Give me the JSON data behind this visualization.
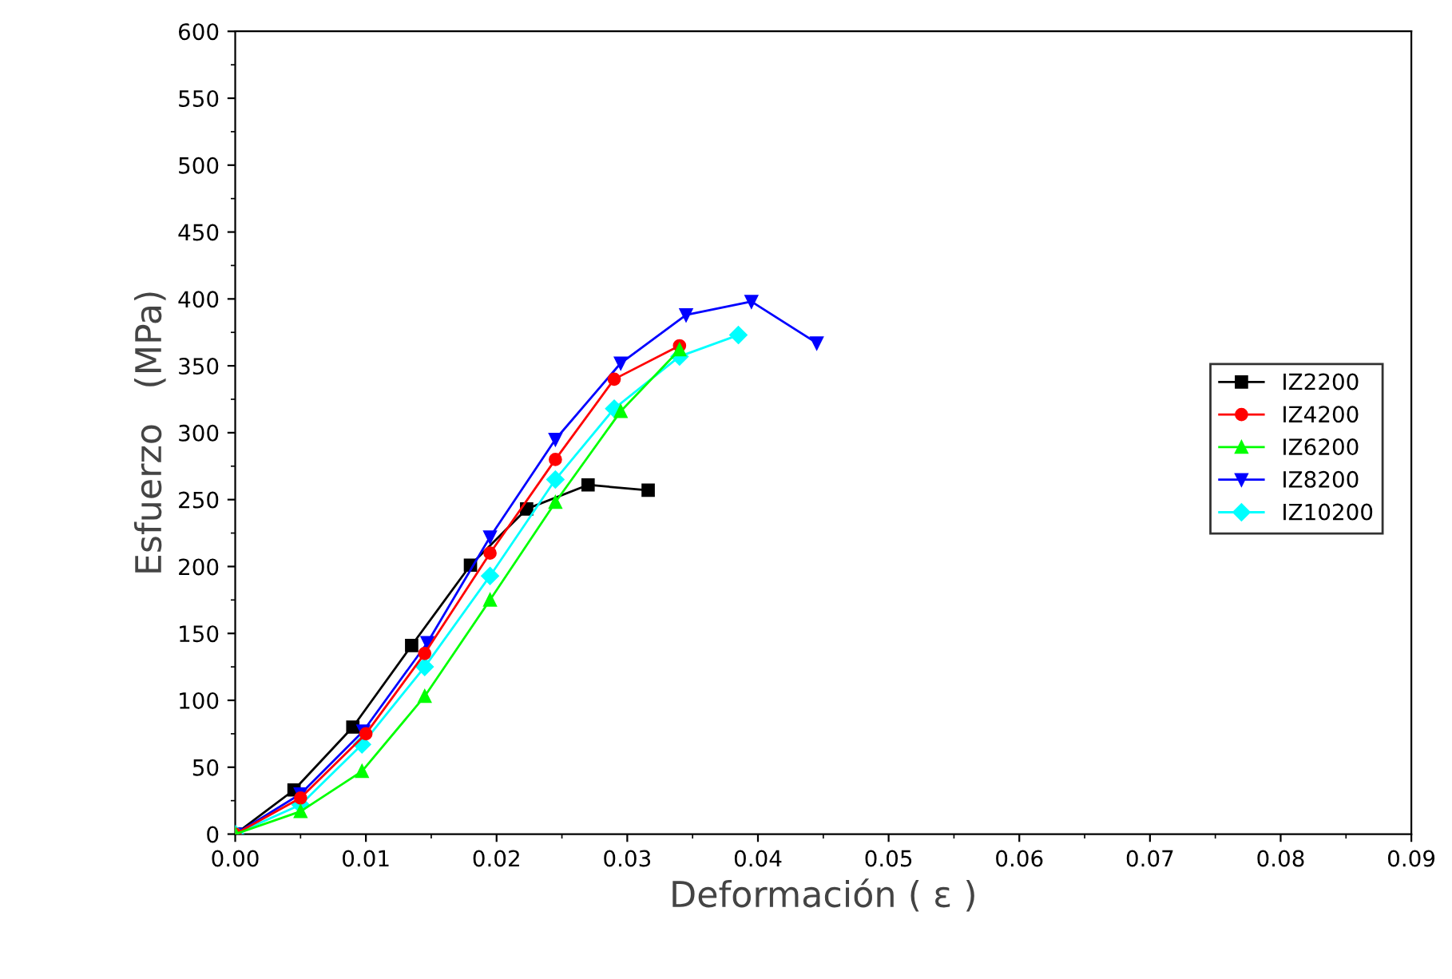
{
  "chart_data": {
    "type": "line",
    "xlabel": "Deformación ( ε )",
    "ylabel": "Esfuerzo   (MPa)",
    "legend": "right",
    "grid": false,
    "xlim": [
      0,
      0.09
    ],
    "ylim": [
      0,
      600
    ],
    "xticks": [
      {
        "value": 0,
        "label": "0.00"
      },
      {
        "value": 0.01,
        "label": "0.01"
      },
      {
        "value": 0.02,
        "label": "0.02"
      },
      {
        "value": 0.03,
        "label": "0.03"
      },
      {
        "value": 0.04,
        "label": "0.04"
      },
      {
        "value": 0.05,
        "label": "0.05"
      },
      {
        "value": 0.06,
        "label": "0.06"
      },
      {
        "value": 0.07,
        "label": "0.07"
      },
      {
        "value": 0.08,
        "label": "0.08"
      },
      {
        "value": 0.09,
        "label": "0.09"
      }
    ],
    "yticks": [
      0,
      50,
      100,
      150,
      200,
      250,
      300,
      350,
      400,
      450,
      500,
      550,
      600
    ],
    "series": [
      {
        "name": "IZ2200",
        "color": "#000000",
        "marker": "square",
        "x": [
          0,
          0.0045,
          0.009,
          0.0135,
          0.018,
          0.0223,
          0.027,
          0.0316
        ],
        "values": [
          0,
          33,
          80,
          141,
          201,
          243,
          261,
          257
        ]
      },
      {
        "name": "IZ4200",
        "color": "#ff0000",
        "marker": "circle",
        "x": [
          0,
          0.005,
          0.01,
          0.0145,
          0.0195,
          0.0245,
          0.029,
          0.034
        ],
        "values": [
          0,
          27,
          75,
          135,
          210,
          280,
          340,
          365
        ]
      },
      {
        "name": "IZ6200",
        "color": "#00ff00",
        "marker": "triangle",
        "x": [
          0,
          0.005,
          0.0097,
          0.0145,
          0.0195,
          0.0245,
          0.0295,
          0.034
        ],
        "values": [
          0,
          17,
          47,
          103,
          175,
          248,
          316,
          362
        ]
      },
      {
        "name": "IZ8200",
        "color": "#0000ff",
        "marker": "triangle_down",
        "x": [
          0,
          0.005,
          0.0098,
          0.0147,
          0.0195,
          0.0245,
          0.0295,
          0.0345,
          0.0395,
          0.0445
        ],
        "values": [
          0,
          30,
          77,
          143,
          222,
          295,
          352,
          388,
          398,
          367
        ]
      },
      {
        "name": "IZ10200",
        "color": "#00ffff",
        "marker": "diamond",
        "x": [
          0,
          0.005,
          0.0097,
          0.0145,
          0.0195,
          0.0245,
          0.029,
          0.034,
          0.0385
        ],
        "values": [
          0,
          22,
          67,
          125,
          193,
          265,
          318,
          357,
          373
        ]
      }
    ]
  }
}
